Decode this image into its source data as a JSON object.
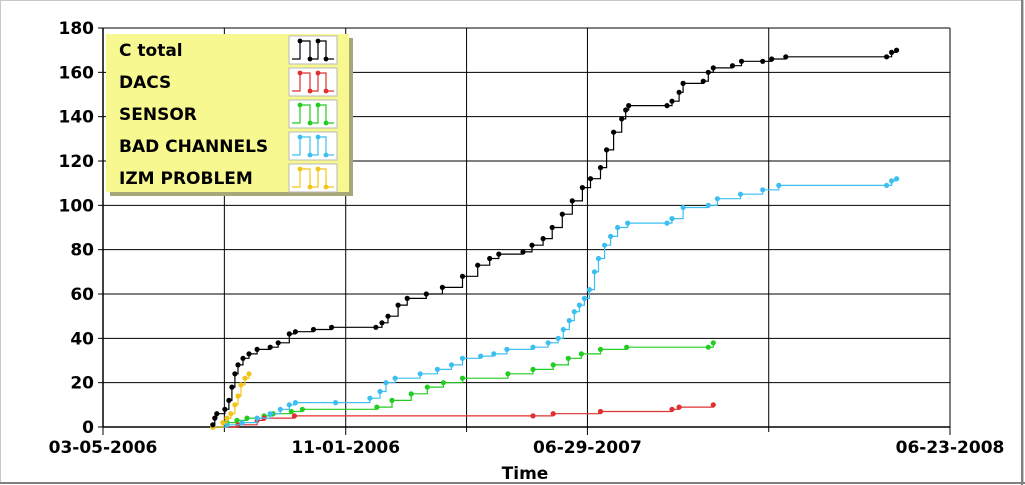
{
  "chart_data": {
    "type": "line",
    "xlabel": "Time",
    "ylabel": "",
    "title": "",
    "ylim": [
      0,
      180
    ],
    "yticks": [
      0,
      20,
      40,
      60,
      80,
      100,
      120,
      140,
      160,
      180
    ],
    "xlim": [
      "03-05-2006",
      "06-23-2008"
    ],
    "xtick_labels": [
      "03-05-2006",
      "11-01-2006",
      "06-29-2007",
      "06-23-2008"
    ],
    "grid": true,
    "legend_position": "top-left",
    "series": [
      {
        "name": "C total",
        "color": "#000000",
        "points": [
          [
            "2006-06-22",
            1
          ],
          [
            "2006-06-24",
            4
          ],
          [
            "2006-06-26",
            6
          ],
          [
            "2006-07-04",
            8
          ],
          [
            "2006-07-08",
            12
          ],
          [
            "2006-07-11",
            18
          ],
          [
            "2006-07-14",
            24
          ],
          [
            "2006-07-17",
            28
          ],
          [
            "2006-07-22",
            31
          ],
          [
            "2006-07-28",
            33
          ],
          [
            "2006-08-05",
            35
          ],
          [
            "2006-08-18",
            36
          ],
          [
            "2006-08-26",
            38
          ],
          [
            "2006-09-06",
            42
          ],
          [
            "2006-09-12",
            43
          ],
          [
            "2006-09-30",
            44
          ],
          [
            "2006-10-18",
            45
          ],
          [
            "2006-12-01",
            45
          ],
          [
            "2006-12-07",
            47
          ],
          [
            "2006-12-13",
            50
          ],
          [
            "2006-12-23",
            55
          ],
          [
            "2007-01-01",
            58
          ],
          [
            "2007-01-20",
            60
          ],
          [
            "2007-02-05",
            63
          ],
          [
            "2007-02-25",
            68
          ],
          [
            "2007-03-12",
            73
          ],
          [
            "2007-03-24",
            76
          ],
          [
            "2007-04-02",
            78
          ],
          [
            "2007-04-26",
            79
          ],
          [
            "2007-05-05",
            82
          ],
          [
            "2007-05-16",
            85
          ],
          [
            "2007-05-25",
            90
          ],
          [
            "2007-06-04",
            96
          ],
          [
            "2007-06-14",
            102
          ],
          [
            "2007-06-24",
            108
          ],
          [
            "2007-07-02",
            112
          ],
          [
            "2007-07-12",
            117
          ],
          [
            "2007-07-18",
            125
          ],
          [
            "2007-07-25",
            133
          ],
          [
            "2007-08-02",
            139
          ],
          [
            "2007-08-06",
            143
          ],
          [
            "2007-08-09",
            145
          ],
          [
            "2007-09-16",
            145
          ],
          [
            "2007-09-21",
            147
          ],
          [
            "2007-09-28",
            151
          ],
          [
            "2007-10-02",
            155
          ],
          [
            "2007-10-22",
            156
          ],
          [
            "2007-10-27",
            160
          ],
          [
            "2007-11-01",
            162
          ],
          [
            "2007-11-20",
            163
          ],
          [
            "2007-11-29",
            165
          ],
          [
            "2007-12-20",
            165
          ],
          [
            "2007-12-29",
            166
          ],
          [
            "2008-01-12",
            167
          ],
          [
            "2008-04-21",
            167
          ],
          [
            "2008-04-26",
            169
          ],
          [
            "2008-05-01",
            170
          ]
        ]
      },
      {
        "name": "DACS",
        "color": "#e03030",
        "points": [
          [
            "2006-06-22",
            0
          ],
          [
            "2006-07-17",
            1
          ],
          [
            "2006-08-05",
            3
          ],
          [
            "2006-08-12",
            4
          ],
          [
            "2006-09-11",
            5
          ],
          [
            "2007-05-06",
            5
          ],
          [
            "2007-05-26",
            6
          ],
          [
            "2007-07-12",
            7
          ],
          [
            "2007-09-21",
            8
          ],
          [
            "2007-09-28",
            9
          ],
          [
            "2007-11-01",
            10
          ]
        ]
      },
      {
        "name": "SENSOR",
        "color": "#22cc22",
        "points": [
          [
            "2006-06-22",
            0
          ],
          [
            "2006-07-06",
            2
          ],
          [
            "2006-07-16",
            3
          ],
          [
            "2006-07-26",
            4
          ],
          [
            "2006-08-12",
            5
          ],
          [
            "2006-08-21",
            6
          ],
          [
            "2006-09-08",
            7
          ],
          [
            "2006-09-19",
            8
          ],
          [
            "2006-12-02",
            9
          ],
          [
            "2006-12-17",
            12
          ],
          [
            "2007-01-05",
            15
          ],
          [
            "2007-01-21",
            18
          ],
          [
            "2007-02-06",
            20
          ],
          [
            "2007-02-25",
            22
          ],
          [
            "2007-04-11",
            24
          ],
          [
            "2007-05-06",
            26
          ],
          [
            "2007-05-26",
            28
          ],
          [
            "2007-06-10",
            31
          ],
          [
            "2007-06-23",
            33
          ],
          [
            "2007-07-12",
            35
          ],
          [
            "2007-08-07",
            36
          ],
          [
            "2007-10-27",
            36
          ],
          [
            "2007-11-01",
            38
          ]
        ]
      },
      {
        "name": "BAD CHANNELS",
        "color": "#3bbff0",
        "points": [
          [
            "2006-06-22",
            0
          ],
          [
            "2006-07-06",
            1
          ],
          [
            "2006-07-21",
            2
          ],
          [
            "2006-08-05",
            4
          ],
          [
            "2006-08-18",
            6
          ],
          [
            "2006-08-28",
            8
          ],
          [
            "2006-09-06",
            10
          ],
          [
            "2006-09-12",
            11
          ],
          [
            "2006-10-22",
            11
          ],
          [
            "2006-11-25",
            13
          ],
          [
            "2006-12-05",
            16
          ],
          [
            "2006-12-11",
            20
          ],
          [
            "2006-12-20",
            22
          ],
          [
            "2007-01-14",
            24
          ],
          [
            "2007-01-31",
            26
          ],
          [
            "2007-02-14",
            28
          ],
          [
            "2007-02-25",
            31
          ],
          [
            "2007-03-15",
            32
          ],
          [
            "2007-03-28",
            33
          ],
          [
            "2007-04-10",
            35
          ],
          [
            "2007-05-06",
            36
          ],
          [
            "2007-05-21",
            38
          ],
          [
            "2007-05-31",
            40
          ],
          [
            "2007-06-05",
            44
          ],
          [
            "2007-06-11",
            48
          ],
          [
            "2007-06-16",
            52
          ],
          [
            "2007-06-21",
            55
          ],
          [
            "2007-06-26",
            58
          ],
          [
            "2007-07-01",
            62
          ],
          [
            "2007-07-06",
            70
          ],
          [
            "2007-07-10",
            76
          ],
          [
            "2007-07-16",
            82
          ],
          [
            "2007-07-22",
            86
          ],
          [
            "2007-07-29",
            90
          ],
          [
            "2007-08-08",
            92
          ],
          [
            "2007-09-16",
            92
          ],
          [
            "2007-09-21",
            94
          ],
          [
            "2007-10-02",
            99
          ],
          [
            "2007-10-27",
            100
          ],
          [
            "2007-11-05",
            103
          ],
          [
            "2007-11-28",
            105
          ],
          [
            "2007-12-20",
            107
          ],
          [
            "2008-01-05",
            109
          ],
          [
            "2008-04-21",
            109
          ],
          [
            "2008-04-26",
            111
          ],
          [
            "2008-05-01",
            112
          ]
        ]
      },
      {
        "name": "IZM PROBLEM",
        "color": "#f2c418",
        "points": [
          [
            "2006-06-22",
            0
          ],
          [
            "2006-07-02",
            2
          ],
          [
            "2006-07-06",
            4
          ],
          [
            "2006-07-10",
            6
          ],
          [
            "2006-07-14",
            10
          ],
          [
            "2006-07-17",
            14
          ],
          [
            "2006-07-20",
            19
          ],
          [
            "2006-07-24",
            22
          ],
          [
            "2006-07-28",
            24
          ]
        ]
      }
    ]
  }
}
